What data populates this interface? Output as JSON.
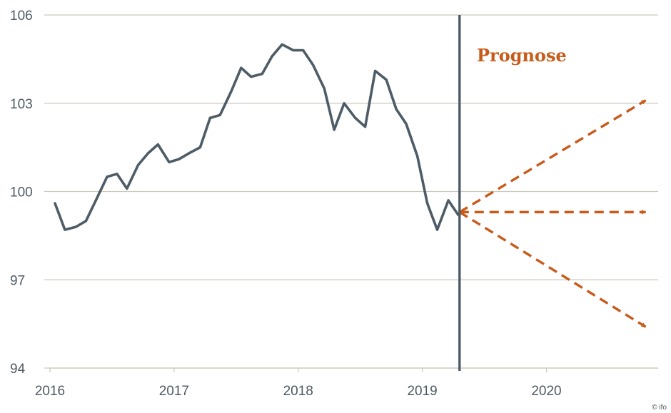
{
  "chart_data": {
    "type": "line",
    "title": "",
    "xlabel": "",
    "ylabel": "",
    "xlim": [
      2016.0,
      2020.9
    ],
    "ylim": [
      94,
      106
    ],
    "x_ticks": [
      2016,
      2017,
      2018,
      2019,
      2020
    ],
    "x_tick_labels": [
      "2016",
      "2017",
      "2018",
      "2019",
      "2020"
    ],
    "y_ticks": [
      94,
      97,
      100,
      103,
      106
    ],
    "y_tick_labels": [
      "94",
      "97",
      "100",
      "103",
      "106"
    ],
    "grid": "horizontal",
    "series": [
      {
        "values": [
          [
            2016.04,
            99.6
          ],
          [
            2016.12,
            98.7
          ],
          [
            2016.21,
            98.8
          ],
          [
            2016.29,
            99.0
          ],
          [
            2016.37,
            99.7
          ],
          [
            2016.46,
            100.5
          ],
          [
            2016.54,
            100.6
          ],
          [
            2016.62,
            100.1
          ],
          [
            2016.71,
            100.9
          ],
          [
            2016.79,
            101.3
          ],
          [
            2016.87,
            101.6
          ],
          [
            2016.96,
            101.0
          ],
          [
            2017.04,
            101.1
          ],
          [
            2017.12,
            101.3
          ],
          [
            2017.21,
            101.5
          ],
          [
            2017.29,
            102.5
          ],
          [
            2017.37,
            102.6
          ],
          [
            2017.46,
            103.4
          ],
          [
            2017.54,
            104.2
          ],
          [
            2017.62,
            103.9
          ],
          [
            2017.71,
            104.0
          ],
          [
            2017.79,
            104.6
          ],
          [
            2017.87,
            105.0
          ],
          [
            2017.96,
            104.8
          ],
          [
            2018.04,
            104.8
          ],
          [
            2018.12,
            104.3
          ],
          [
            2018.21,
            103.5
          ],
          [
            2018.29,
            102.1
          ],
          [
            2018.37,
            103.0
          ],
          [
            2018.46,
            102.5
          ],
          [
            2018.54,
            102.2
          ],
          [
            2018.62,
            104.1
          ],
          [
            2018.71,
            103.8
          ],
          [
            2018.79,
            102.8
          ],
          [
            2018.87,
            102.3
          ],
          [
            2018.96,
            101.2
          ],
          [
            2019.04,
            99.6
          ],
          [
            2019.12,
            98.7
          ],
          [
            2019.21,
            99.7
          ],
          [
            2019.29,
            99.2
          ]
        ]
      }
    ],
    "forecast_start": 2019.3,
    "forecast_origin": [
      2019.3,
      99.3
    ],
    "forecast_scenarios": [
      {
        "end": [
          2020.8,
          103.1
        ]
      },
      {
        "end": [
          2020.8,
          99.3
        ]
      },
      {
        "end": [
          2020.8,
          95.4
        ]
      }
    ],
    "annotation": "Prognose",
    "credit": "© ifo",
    "colors": {
      "line": "#4d5c66",
      "forecast": "#c85a1a",
      "grid": "#c9c9bd",
      "divider": "#4d5c66",
      "text": "#505a62"
    }
  }
}
